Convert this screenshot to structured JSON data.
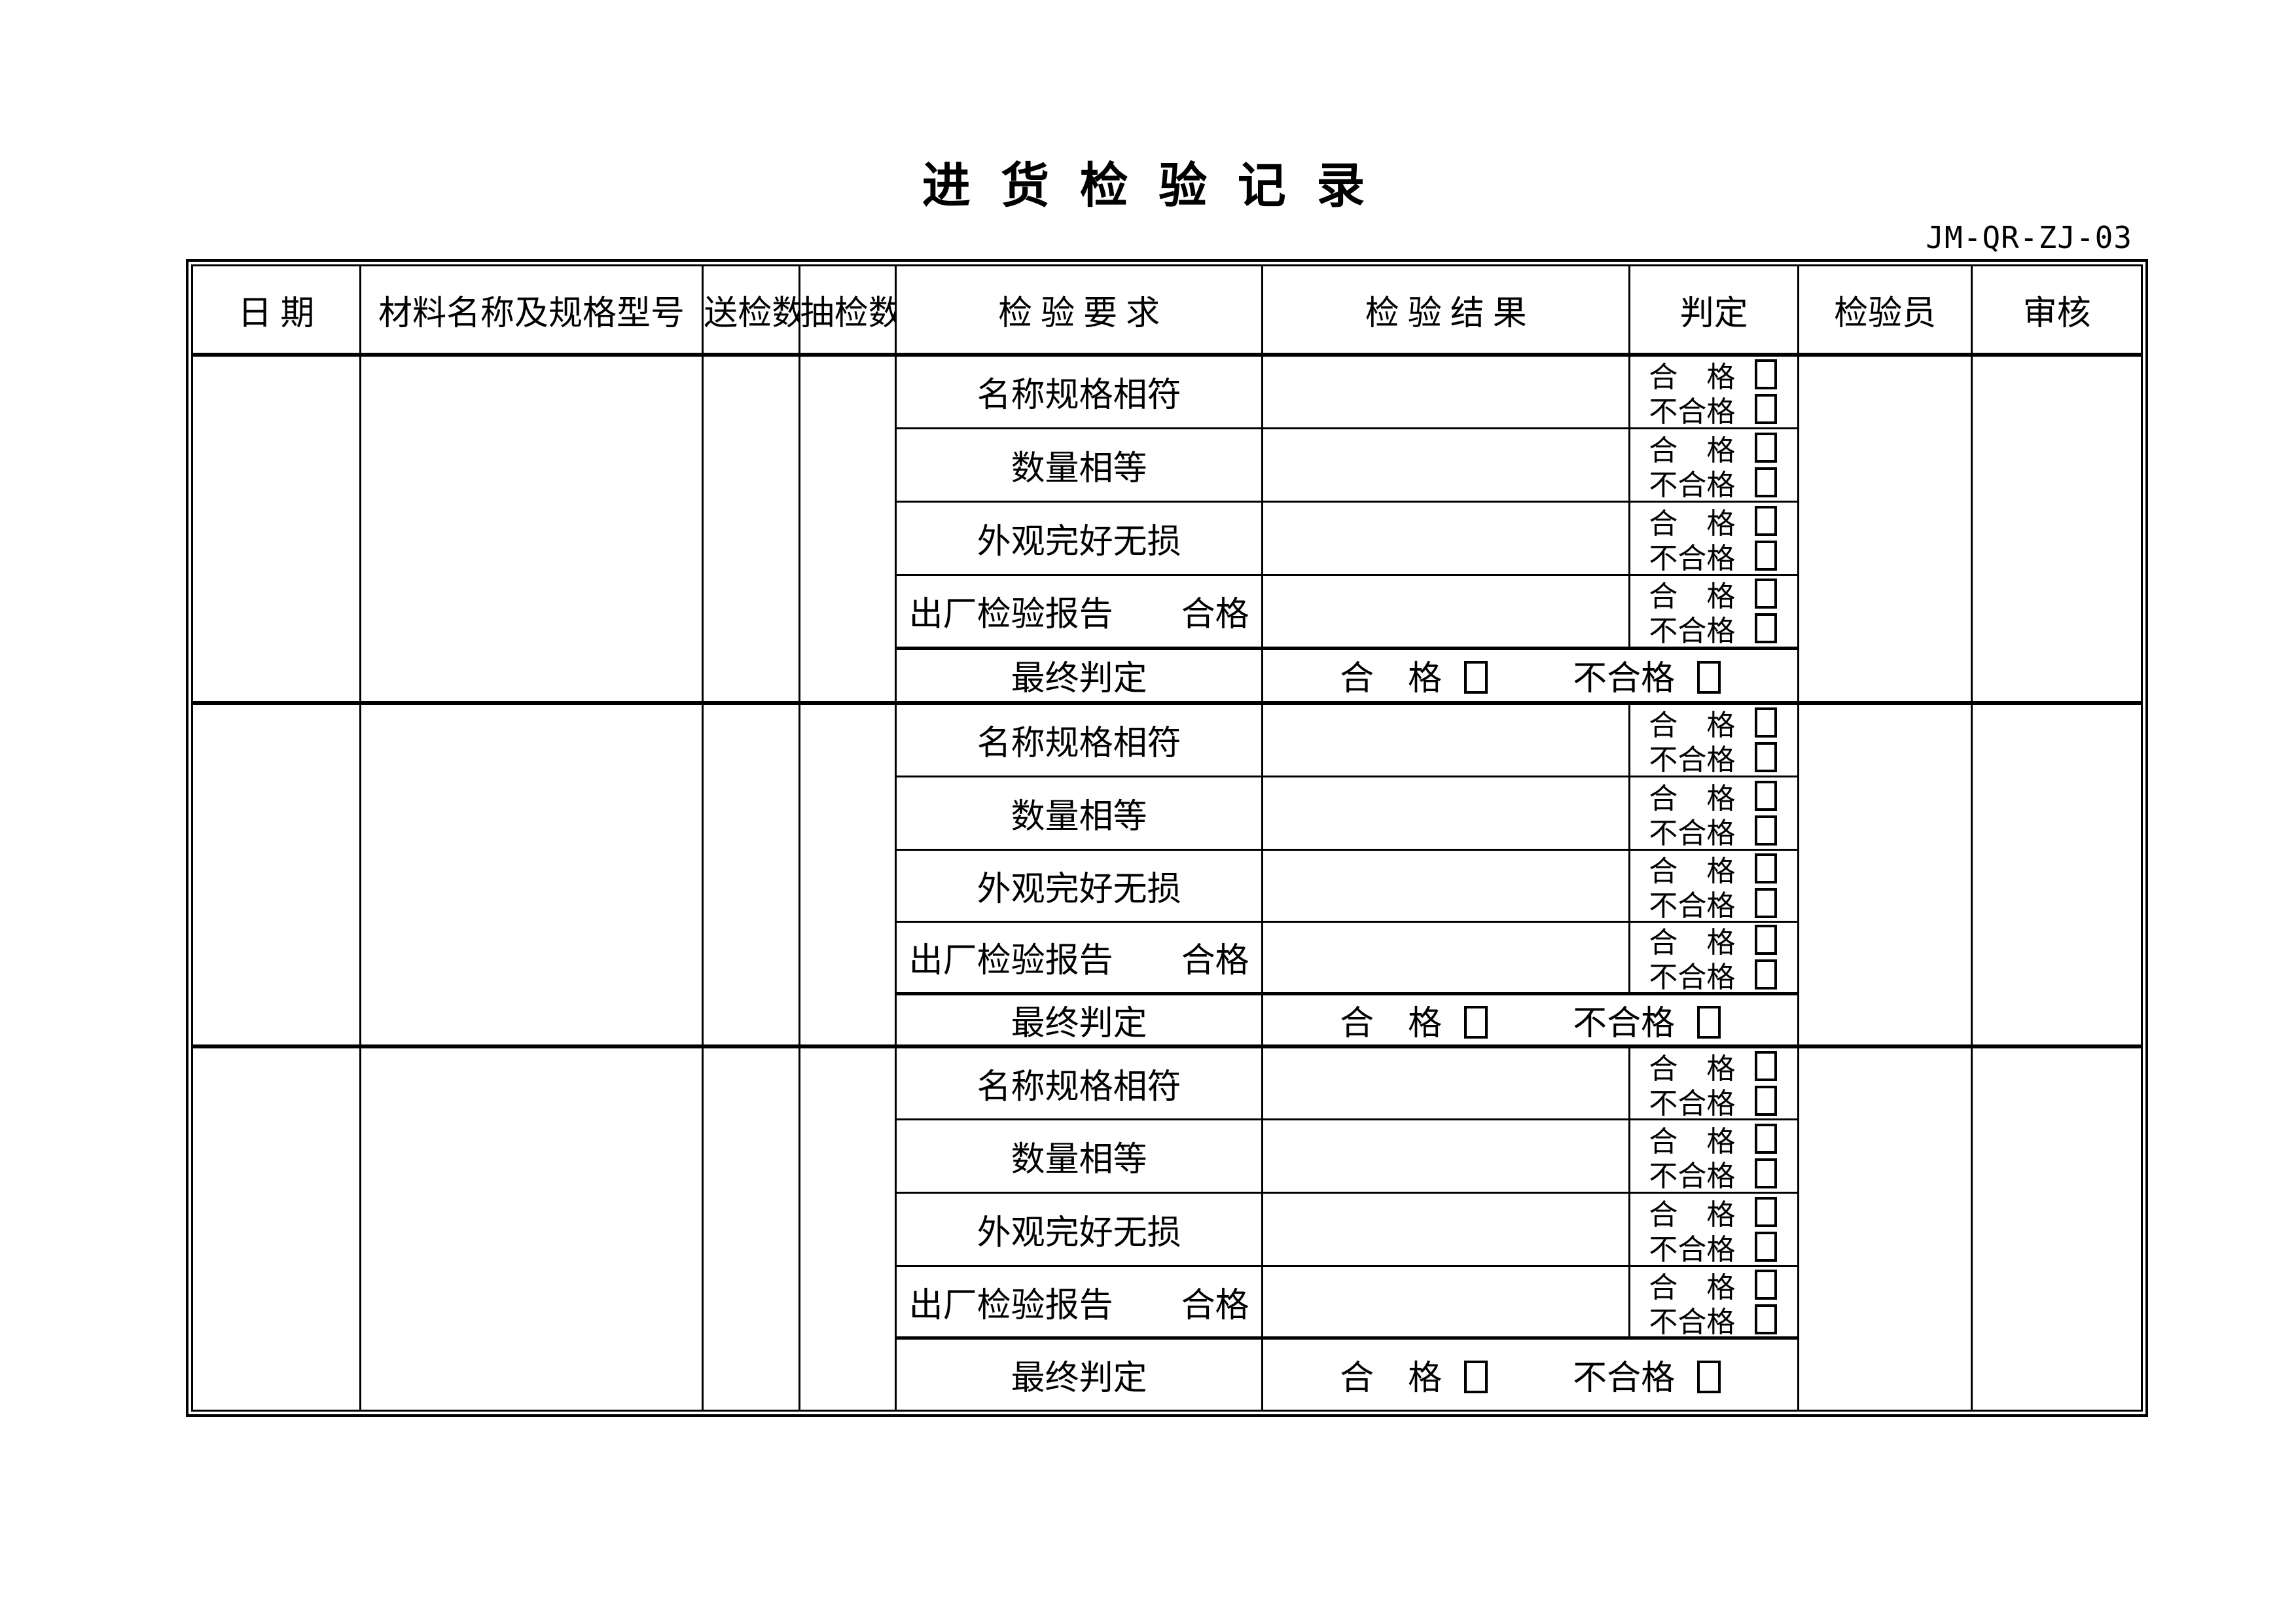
{
  "page": {
    "title": "进 货 检 验 记 录",
    "doc_code": "JM-QR-ZJ-03"
  },
  "table": {
    "headers": [
      "日 期",
      "材料名称及规格型号",
      "送检数",
      "抽检数",
      "检 验 要 求",
      "检 验 结 果",
      "判定",
      "检验员",
      "审核"
    ],
    "check_items": [
      "名称规格相符",
      "数量相等",
      "外观完好无损",
      "出厂检验报告　　合格"
    ],
    "final_label": "最终判定",
    "judgement": {
      "pass": "合　格",
      "fail": "不合格"
    },
    "final_judgement": {
      "pass": "合　格",
      "fail": "不合格"
    },
    "groups": [
      {
        "date": "",
        "material": "",
        "sent_count": "",
        "sample_count": "",
        "results": [
          "",
          "",
          "",
          ""
        ],
        "final_result": "",
        "inspector": "",
        "audit": ""
      },
      {
        "date": "",
        "material": "",
        "sent_count": "",
        "sample_count": "",
        "results": [
          "",
          "",
          "",
          ""
        ],
        "final_result": "",
        "inspector": "",
        "audit": ""
      },
      {
        "date": "",
        "material": "",
        "sent_count": "",
        "sample_count": "",
        "results": [
          "",
          "",
          "",
          ""
        ],
        "final_result": "",
        "inspector": "",
        "audit": ""
      }
    ]
  },
  "colors": {
    "ink": "#000000",
    "paper": "#ffffff"
  }
}
